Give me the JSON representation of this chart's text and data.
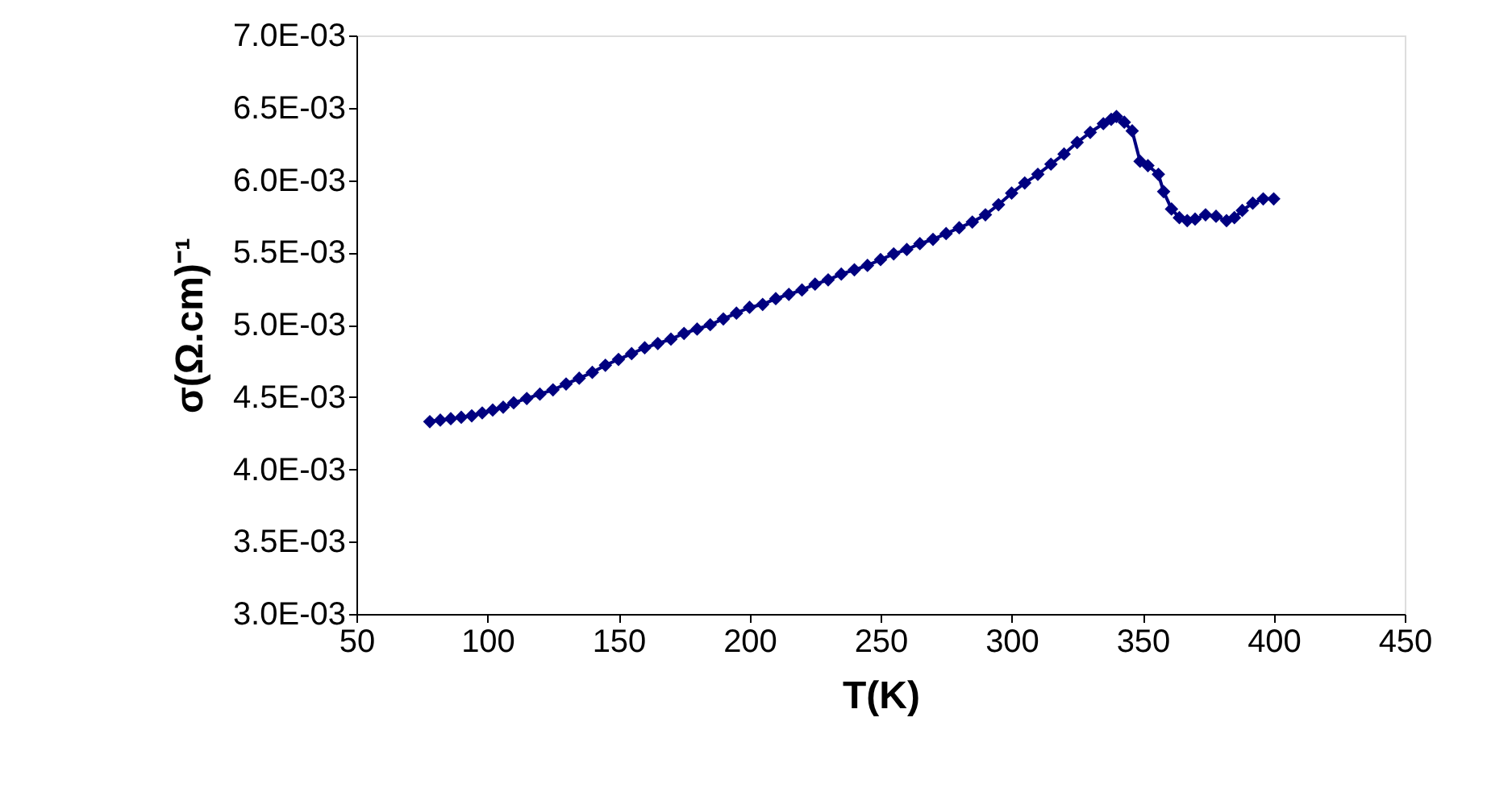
{
  "chart_data": {
    "type": "line",
    "xlabel": "T(K)",
    "ylabel": "σ(Ω.cm)⁻¹",
    "x": [
      78,
      82,
      86,
      90,
      94,
      98,
      102,
      106,
      110,
      115,
      120,
      125,
      130,
      135,
      140,
      145,
      150,
      155,
      160,
      165,
      170,
      175,
      180,
      185,
      190,
      195,
      200,
      205,
      210,
      215,
      220,
      225,
      230,
      235,
      240,
      245,
      250,
      255,
      260,
      265,
      270,
      275,
      280,
      285,
      290,
      295,
      300,
      305,
      310,
      315,
      320,
      325,
      330,
      335,
      338,
      340,
      343,
      346,
      349,
      352,
      356,
      358,
      361,
      364,
      367,
      370,
      374,
      378,
      382,
      385,
      388,
      392,
      396,
      400
    ],
    "series": [
      {
        "color": "#000080",
        "values": [
          0.00433,
          0.00434,
          0.00435,
          0.00436,
          0.00437,
          0.00439,
          0.00441,
          0.00443,
          0.00446,
          0.00449,
          0.00452,
          0.00455,
          0.00459,
          0.00463,
          0.00467,
          0.00472,
          0.00476,
          0.0048,
          0.00484,
          0.00487,
          0.0049,
          0.00494,
          0.00497,
          0.005,
          0.00504,
          0.00508,
          0.00512,
          0.00514,
          0.00518,
          0.00521,
          0.00524,
          0.00528,
          0.00531,
          0.00535,
          0.00538,
          0.00541,
          0.00545,
          0.00549,
          0.00552,
          0.00556,
          0.00559,
          0.00563,
          0.00567,
          0.00571,
          0.00576,
          0.00583,
          0.00591,
          0.00598,
          0.00604,
          0.00611,
          0.00618,
          0.00626,
          0.00633,
          0.00639,
          0.00642,
          0.00644,
          0.0064,
          0.00634,
          0.00613,
          0.0061,
          0.00604,
          0.00592,
          0.0058,
          0.00574,
          0.00572,
          0.00573,
          0.00576,
          0.00575,
          0.00572,
          0.00574,
          0.00579,
          0.00584,
          0.00587,
          0.00587
        ]
      }
    ],
    "xlim": [
      50,
      450
    ],
    "xticks": [
      50,
      100,
      150,
      200,
      250,
      300,
      350,
      400,
      450
    ],
    "ylim": [
      0.003,
      0.007
    ],
    "yticks": [
      {
        "value": 0.003,
        "label": "3.0E-03"
      },
      {
        "value": 0.0035,
        "label": "3.5E-03"
      },
      {
        "value": 0.004,
        "label": "4.0E-03"
      },
      {
        "value": 0.0045,
        "label": "4.5E-03"
      },
      {
        "value": 0.005,
        "label": "5.0E-03"
      },
      {
        "value": 0.0055,
        "label": "5.5E-03"
      },
      {
        "value": 0.006,
        "label": "6.0E-03"
      },
      {
        "value": 0.0065,
        "label": "6.5E-03"
      },
      {
        "value": 0.007,
        "label": "7.0E-03"
      }
    ],
    "grid": false,
    "legend": false,
    "marker": "diamond",
    "line_style": "solid"
  }
}
